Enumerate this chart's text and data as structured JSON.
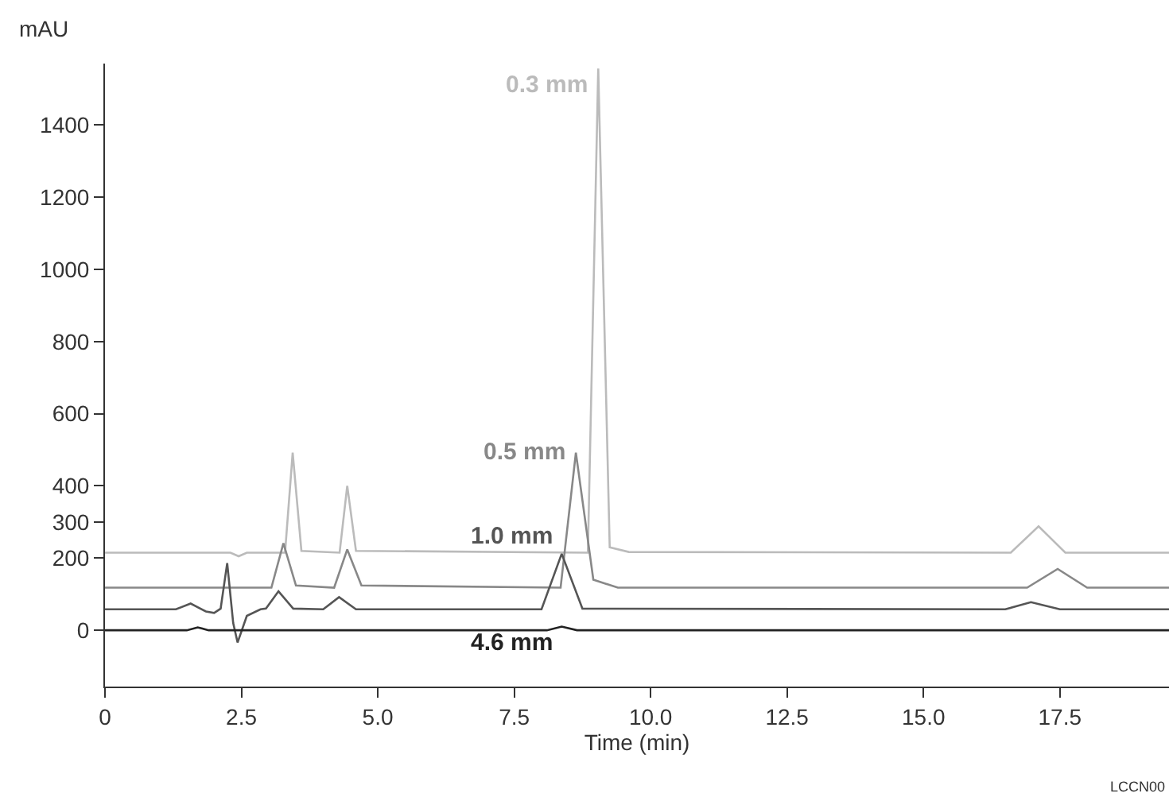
{
  "chart_data": {
    "type": "line",
    "ylabel": "mAU",
    "xlabel": "Time (min)",
    "xlim": [
      0,
      19.5
    ],
    "xticks": [
      0,
      {
        "value": 2.5,
        "label": "2.5"
      },
      {
        "value": 5,
        "label": "5.0"
      },
      {
        "value": 7.5,
        "label": "7.5"
      },
      {
        "value": 10,
        "label": "10.0"
      },
      {
        "value": 12.5,
        "label": "12.5"
      },
      {
        "value": 15,
        "label": "15.0"
      },
      {
        "value": 17.5,
        "label": "17.5"
      }
    ],
    "ylim": [
      -156,
      1570
    ],
    "yticks": [
      0,
      200,
      300,
      400,
      600,
      800,
      1000,
      1200,
      1400
    ],
    "legend": false,
    "marker": "none",
    "line_style": "solid",
    "series": [
      {
        "name": "0.3 mm",
        "color": "#bbbbbb",
        "x": [
          0,
          2.3,
          2.45,
          2.6,
          3.3,
          3.44,
          3.6,
          4.3,
          4.44,
          4.6,
          8.85,
          9.04,
          9.25,
          9.6,
          16.6,
          17.11,
          17.6,
          19.5
        ],
        "values": [
          215,
          215,
          205,
          215,
          215,
          492,
          220,
          215,
          400,
          220,
          215,
          1556,
          230,
          217,
          215,
          288,
          215,
          215
        ]
      },
      {
        "name": "0.5 mm",
        "color": "#888888",
        "x": [
          0,
          3.05,
          3.27,
          3.5,
          4.2,
          4.44,
          4.7,
          8.35,
          8.63,
          8.95,
          9.4,
          16.9,
          17.46,
          18.0,
          19.5
        ],
        "values": [
          118,
          118,
          241,
          124,
          118,
          224,
          124,
          118,
          492,
          140,
          118,
          118,
          170,
          118,
          118
        ]
      },
      {
        "name": "1.0 mm",
        "color": "#555555",
        "x": [
          0,
          1.3,
          1.57,
          1.85,
          2.0,
          2.12,
          2.24,
          2.35,
          2.43,
          2.6,
          2.85,
          2.95,
          3.18,
          3.45,
          4.0,
          4.29,
          4.6,
          8.0,
          8.37,
          8.75,
          16.5,
          16.97,
          17.5,
          19.5
        ],
        "values": [
          58,
          58,
          74,
          52,
          48,
          60,
          186,
          20,
          -34,
          40,
          58,
          60,
          108,
          60,
          58,
          92,
          58,
          58,
          212,
          60,
          58,
          78,
          58,
          58
        ]
      },
      {
        "name": "4.6 mm",
        "color": "#222222",
        "x": [
          0,
          1.5,
          1.7,
          1.9,
          8.1,
          8.37,
          8.65,
          19.5
        ],
        "values": [
          0,
          0,
          8,
          0,
          0,
          10,
          0,
          0
        ]
      }
    ],
    "annotations": [
      "LCCN00"
    ]
  }
}
